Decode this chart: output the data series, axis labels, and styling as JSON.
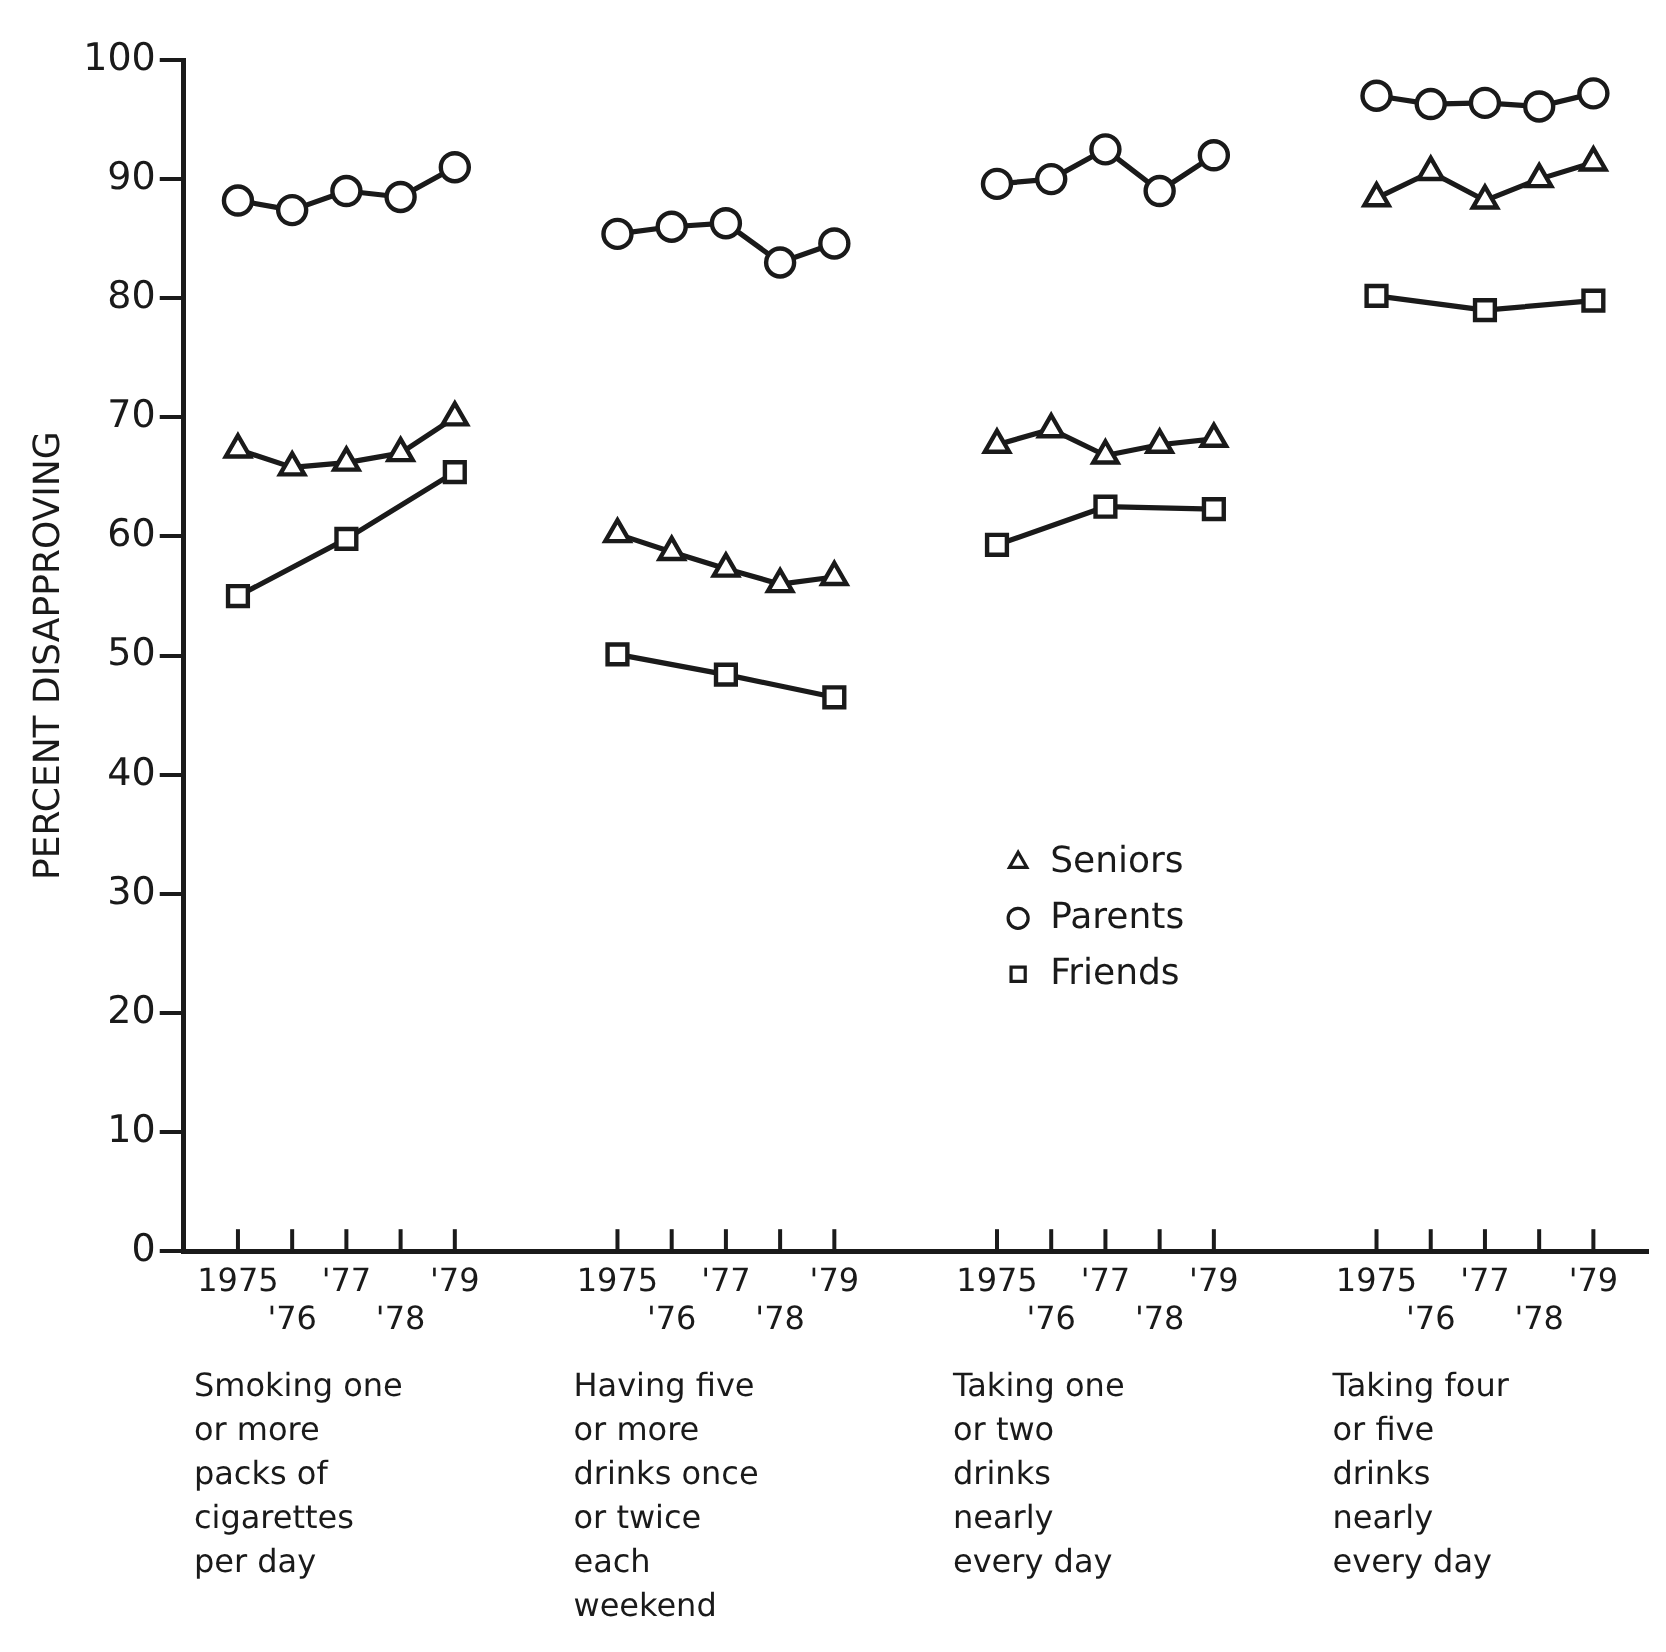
{
  "chart_data": {
    "type": "line",
    "ylabel": "PERCENT DISAPPROVING",
    "categories": [
      null,
      "1975",
      "'76",
      "'77",
      "'78",
      "'79",
      null,
      null,
      "1975",
      "'76",
      "'77",
      "'78",
      "'79",
      null,
      null,
      "1975",
      "'76",
      "'77",
      "'78",
      "'79",
      null,
      null,
      "1975",
      "'76",
      "'77",
      "'78",
      "'79",
      null
    ],
    "series": [
      {
        "name": "Seniors",
        "color": "#1a1a1a",
        "marker": "triangle",
        "values": [
          null,
          67.3,
          65.8,
          66.2,
          67,
          70,
          null,
          null,
          60.2,
          58.7,
          57.3,
          56,
          56.6,
          null,
          null,
          67.7,
          69,
          66.8,
          67.7,
          68.2,
          null,
          null,
          88.4,
          90.6,
          88.2,
          90,
          91.4,
          null
        ]
      },
      {
        "name": "Parents",
        "color": "#1a1a1a",
        "marker": "circle",
        "values": [
          null,
          88.2,
          87.4,
          89,
          88.5,
          91,
          null,
          null,
          85.4,
          86,
          86.3,
          83,
          84.6,
          null,
          null,
          89.6,
          90,
          92.5,
          89,
          92,
          null,
          null,
          97,
          96.3,
          96.4,
          96.1,
          97.2,
          null
        ]
      },
      {
        "name": "Friends",
        "color": "#1a1a1a",
        "marker": "square",
        "values": [
          null,
          55,
          null,
          59.8,
          null,
          65.4,
          null,
          null,
          50.1,
          null,
          48.4,
          null,
          46.5,
          null,
          null,
          59.3,
          null,
          62.5,
          null,
          62.3,
          null,
          null,
          80.2,
          null,
          79,
          null,
          79.8,
          null
        ]
      }
    ],
    "ylim": [
      0,
      100
    ],
    "yticks": [
      0,
      10,
      20,
      30,
      40,
      50,
      60,
      70,
      80,
      90,
      100
    ],
    "grid": false,
    "legend": "center",
    "line_style": "solid",
    "annotations": [
      "Smoking one\nor more\npacks of\ncigarettes\nper day",
      "Having five\nor more\ndrinks once\nor twice\neach\nweekend",
      "Taking one\nor two\ndrinks\nnearly\nevery day",
      "Taking four\nor five\ndrinks\nnearly\nevery day"
    ]
  }
}
